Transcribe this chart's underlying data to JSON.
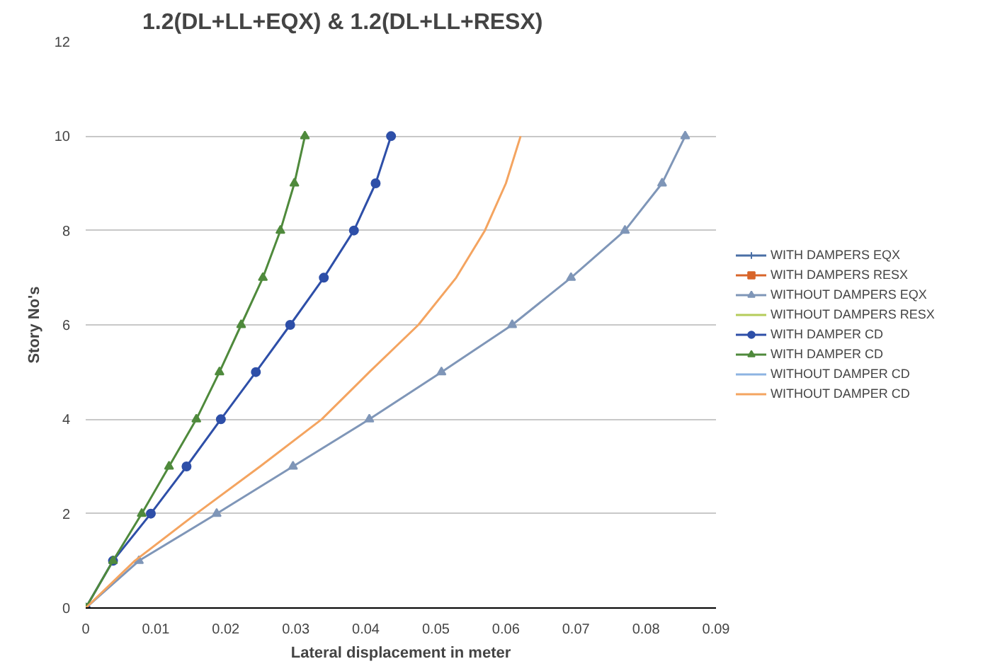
{
  "chart_data": {
    "type": "line",
    "title": "1.2(DL+LL+EQX) & 1.2(DL+LL+RESX)",
    "xlabel": "Lateral displacement in meter",
    "ylabel": "Story No's",
    "xlim": [
      0,
      0.09
    ],
    "xticks": [
      0,
      0.01,
      0.02,
      0.03,
      0.04,
      0.05,
      0.06,
      0.07,
      0.08,
      0.09
    ],
    "ylim": [
      0,
      12
    ],
    "yticks": [
      0,
      2,
      4,
      6,
      8,
      10,
      12
    ],
    "grid": "y",
    "legend": "right",
    "series": [
      {
        "name": "WITH DAMPERS EQX",
        "color": "#4a6fa5",
        "marker": "cross",
        "x": [
          null,
          null
        ],
        "values": [
          null,
          null
        ]
      },
      {
        "name": "WITH DAMPERS RESX",
        "color": "#d8652a",
        "marker": "square",
        "x": [
          null,
          null
        ],
        "values": [
          null,
          null
        ]
      },
      {
        "name": "WITHOUT DAMPERS EQX",
        "color": "#7f96b8",
        "marker": "triangle",
        "x": [
          0,
          0.0076,
          0.0187,
          0.0296,
          0.0405,
          0.0508,
          0.0609,
          0.0693,
          0.077,
          0.0823,
          0.0856
        ],
        "values": [
          0,
          1,
          2,
          3,
          4,
          5,
          6,
          7,
          8,
          9,
          10
        ]
      },
      {
        "name": "WITHOUT DAMPERS RESX",
        "color": "#b5cc5a",
        "marker": "none",
        "x": [
          null,
          null
        ],
        "values": [
          null,
          null
        ]
      },
      {
        "name": "WITH DAMPER CD",
        "color": "#2e4fa8",
        "marker": "circle",
        "x": [
          0,
          0.0039,
          0.0093,
          0.0144,
          0.0193,
          0.0243,
          0.0292,
          0.034,
          0.0383,
          0.0414,
          0.0436
        ],
        "values": [
          0,
          1,
          2,
          3,
          4,
          5,
          6,
          7,
          8,
          9,
          10
        ]
      },
      {
        "name": "WITH DAMPER CD",
        "color": "#4f8a3c",
        "marker": "triangle",
        "x": [
          0,
          0.0039,
          0.008,
          0.0119,
          0.0158,
          0.0191,
          0.0222,
          0.0253,
          0.0278,
          0.0298,
          0.0313
        ],
        "values": [
          0,
          1,
          2,
          3,
          4,
          5,
          6,
          7,
          8,
          9,
          10
        ]
      },
      {
        "name": "WITHOUT DAMPER CD",
        "color": "#8db3e2",
        "marker": "none",
        "x": [
          null,
          null
        ],
        "values": [
          null,
          null
        ]
      },
      {
        "name": "WITHOUT DAMPER CD",
        "color": "#f4a460",
        "marker": "none",
        "x": [
          0,
          0.007,
          0.0158,
          0.0249,
          0.0337,
          0.0405,
          0.0475,
          0.0529,
          0.057,
          0.06,
          0.0621
        ],
        "values": [
          0,
          1,
          2,
          3,
          4,
          5,
          6,
          7,
          8,
          9,
          10
        ]
      }
    ]
  }
}
